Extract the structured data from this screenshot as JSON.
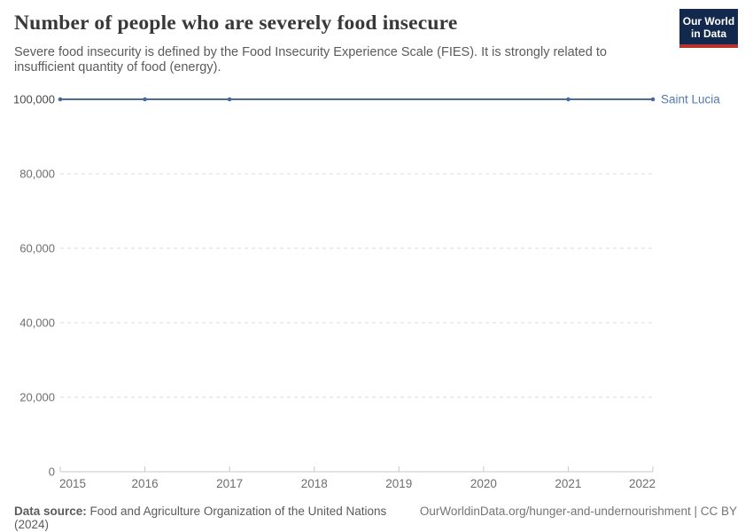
{
  "header": {
    "title": "Number of people who are severely food insecure",
    "subtitle": "Severe food insecurity is defined by the Food Insecurity Experience Scale (FIES). It is strongly related to insufficient quantity of food (energy).",
    "logo": {
      "line1": "Our World",
      "line2": "in Data"
    }
  },
  "chart_data": {
    "type": "line",
    "title": "Number of people who are severely food insecure",
    "entity_label": "Saint Lucia",
    "x": [
      2015,
      2016,
      2017,
      2021,
      2022
    ],
    "series": [
      {
        "name": "Saint Lucia",
        "color": "#4c6a9c",
        "values": [
          100000,
          100000,
          100000,
          100000,
          100000
        ]
      }
    ],
    "x_ticks": [
      2015,
      2016,
      2017,
      2018,
      2019,
      2020,
      2021,
      2022
    ],
    "y_ticks": [
      0,
      20000,
      40000,
      60000,
      80000,
      100000
    ],
    "xlim": [
      2015,
      2022
    ],
    "ylim": [
      0,
      100000
    ],
    "xlabel": "",
    "ylabel": "",
    "grid": "horizontal-dashed",
    "legend_position": "right-of-line-end"
  },
  "footer": {
    "source_label": "Data source:",
    "source_text": " Food and Agriculture Organization of the United Nations (2024)",
    "link_text": "OurWorldinData.org/hunger-and-undernourishment | CC BY"
  },
  "colors": {
    "line": "#4c6a9c",
    "marker": "#47689e",
    "entity_label": "#5379ad",
    "grid": "#dedede",
    "axis": "#c8c8c8",
    "tick_label": "#6e6e6e",
    "tick_label_active": "#484848",
    "title_text": "#383838",
    "subtitle_text": "#5b5b5b",
    "logo_bg": "#12294d",
    "logo_accent": "#b5332c"
  }
}
